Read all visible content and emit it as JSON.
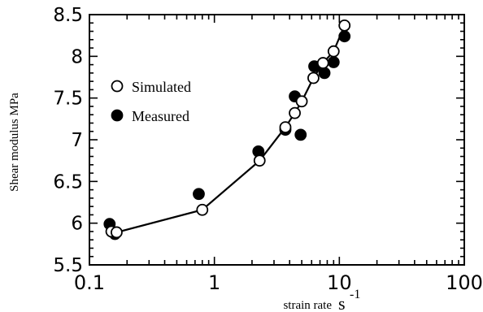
{
  "chart_data": {
    "type": "scatter",
    "title": "",
    "xlabel": "strain rate",
    "xlabel_unit_base": "s",
    "xlabel_unit_exp": "-1",
    "ylabel": "Shear modulus MPa",
    "xscale": "log",
    "xlim": [
      0.1,
      100
    ],
    "ylim": [
      5.5,
      8.5
    ],
    "x_ticks": [
      "0.1",
      "1",
      "10",
      "100"
    ],
    "y_ticks": [
      "5.5",
      "6",
      "6.5",
      "7",
      "7.5",
      "8",
      "8.5"
    ],
    "legend_position": "upper-left",
    "grid": false,
    "series": [
      {
        "name": "Simulated",
        "marker": "open-circle",
        "connected": true,
        "color": "#000000",
        "points": [
          [
            0.15,
            5.9
          ],
          [
            0.165,
            5.89
          ],
          [
            0.8,
            6.16
          ],
          [
            2.3,
            6.75
          ],
          [
            3.7,
            7.15
          ],
          [
            4.4,
            7.32
          ],
          [
            5.0,
            7.46
          ],
          [
            6.2,
            7.74
          ],
          [
            7.4,
            7.92
          ],
          [
            9.0,
            8.06
          ],
          [
            11.0,
            8.37
          ]
        ]
      },
      {
        "name": "Measured",
        "marker": "filled-circle",
        "connected": false,
        "color": "#000000",
        "points": [
          [
            0.145,
            5.99
          ],
          [
            0.16,
            5.87
          ],
          [
            0.75,
            6.35
          ],
          [
            2.25,
            6.86
          ],
          [
            3.7,
            7.12
          ],
          [
            4.4,
            7.52
          ],
          [
            4.9,
            7.06
          ],
          [
            6.3,
            7.88
          ],
          [
            7.6,
            7.8
          ],
          [
            9.0,
            7.93
          ],
          [
            11.0,
            8.24
          ]
        ]
      }
    ]
  }
}
